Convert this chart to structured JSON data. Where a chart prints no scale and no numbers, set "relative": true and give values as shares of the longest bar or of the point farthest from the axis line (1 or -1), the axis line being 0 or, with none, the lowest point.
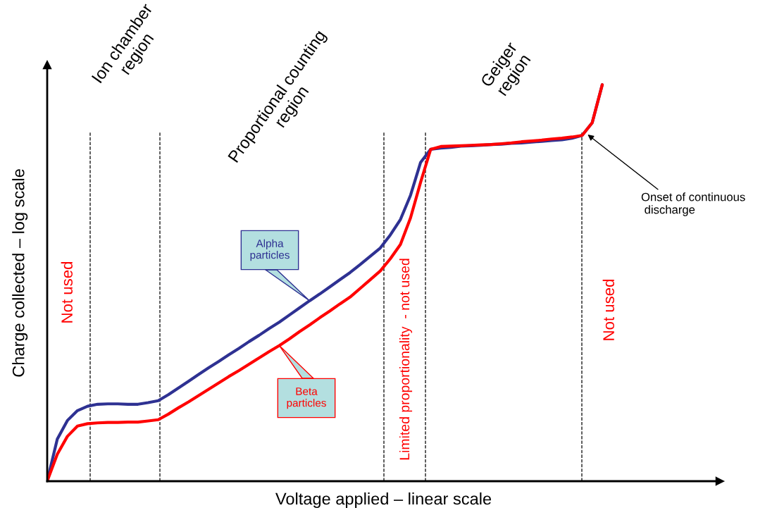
{
  "chart_data": {
    "type": "line",
    "relative": true,
    "xlabel": "Voltage applied – linear scale",
    "ylabel": "Charge collected – log scale",
    "legend": false,
    "line_style": "solid",
    "marker": "none",
    "categories": [
      null,
      null,
      null,
      null,
      null,
      null,
      null,
      null,
      null,
      null,
      null,
      null,
      null,
      null,
      null,
      null,
      null,
      null,
      null,
      null,
      null,
      null,
      null,
      null,
      null,
      null,
      null,
      null,
      null,
      null,
      null,
      null,
      null,
      null,
      null,
      null,
      null,
      null,
      null,
      null,
      null,
      null,
      null,
      null,
      null,
      null,
      null,
      null,
      null,
      null,
      null,
      null,
      null,
      null,
      null,
      null
    ],
    "series": [
      {
        "name": "Alpha\nparticles",
        "color": "#2e3192",
        "values": [
          0,
          0.106,
          0.153,
          0.178,
          0.189,
          0.194,
          0.195,
          0.195,
          0.194,
          0.194,
          0.198,
          0.203,
          0.218,
          0.235,
          0.252,
          0.269,
          0.286,
          0.302,
          0.319,
          0.335,
          0.352,
          0.368,
          0.385,
          0.401,
          0.419,
          0.437,
          0.455,
          0.472,
          0.49,
          0.508,
          0.526,
          0.546,
          0.567,
          0.588,
          0.621,
          0.66,
          0.721,
          0.804,
          0.837,
          0.84,
          0.842,
          0.845,
          0.846,
          0.847,
          0.849,
          0.85,
          0.852,
          0.853,
          0.855,
          0.857,
          0.859,
          0.861,
          0.865,
          0.872,
          0.904,
          1
        ]
      },
      {
        "name": "Beta\nparticles",
        "color": "#ff0000",
        "values": [
          0,
          0.068,
          0.113,
          0.139,
          0.145,
          0.147,
          0.148,
          0.148,
          0.149,
          0.149,
          0.152,
          0.155,
          0.169,
          0.185,
          0.2,
          0.216,
          0.232,
          0.248,
          0.264,
          0.279,
          0.295,
          0.311,
          0.327,
          0.342,
          0.359,
          0.377,
          0.394,
          0.412,
          0.429,
          0.447,
          0.464,
          0.486,
          0.508,
          0.53,
          0.561,
          0.597,
          0.664,
          0.754,
          0.837,
          0.844,
          0.845,
          0.846,
          0.847,
          0.848,
          0.849,
          0.851,
          0.853,
          0.856,
          0.858,
          0.86,
          0.863,
          0.865,
          0.868,
          0.872,
          0.904,
          1
        ]
      }
    ],
    "annotations": [
      "Ion chamber\nregion",
      "Proportional counting\nregion",
      "Geiger\nregion",
      "Not used",
      "Limited proportionality  - not used",
      "Not used",
      "Onset of continuous\n discharge"
    ]
  }
}
